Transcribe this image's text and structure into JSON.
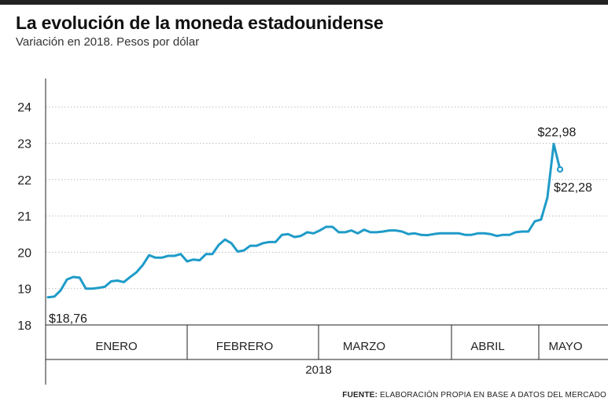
{
  "title": "La evolución de la moneda estadounidense",
  "subtitle": "Variación en 2018. Pesos por dólar",
  "source": {
    "label": "FUENTE:",
    "text": "ELABORACIÓN PROPIA EN BASE A DATOS DEL MERCADO"
  },
  "colors": {
    "line": "#1e9bc8",
    "axis": "#222222"
  },
  "chart_data": {
    "type": "line",
    "title": "La evolución de la moneda estadounidense",
    "subtitle": "Variación en 2018. Pesos por dólar",
    "xlabel": "2018",
    "ylabel": "",
    "ylim": [
      18,
      24
    ],
    "yticks": [
      18,
      19,
      20,
      21,
      22,
      23,
      24
    ],
    "month_labels": [
      "ENERO",
      "FEBRERO",
      "MARZO",
      "ABRIL",
      "MAYO"
    ],
    "year_label": "2018",
    "grid": true,
    "series": [
      {
        "values": [
          18.76,
          18.78,
          18.95,
          19.25,
          19.32,
          19.3,
          19.0,
          19.0,
          19.02,
          19.05,
          19.2,
          19.22,
          19.18,
          19.32,
          19.45,
          19.65,
          19.92,
          19.85,
          19.85,
          19.9,
          19.9,
          19.95,
          19.75,
          19.8,
          19.78,
          19.95,
          19.95,
          20.2,
          20.35,
          20.25,
          20.02,
          20.05,
          20.18,
          20.18,
          20.25,
          20.28,
          20.28,
          20.48,
          20.5,
          20.42,
          20.45,
          20.55,
          20.52,
          20.6,
          20.7,
          20.7,
          20.55,
          20.55,
          20.6,
          20.52,
          20.62,
          20.55,
          20.55,
          20.57,
          20.6,
          20.6,
          20.57,
          20.5,
          20.52,
          20.48,
          20.47,
          20.5,
          20.52,
          20.52,
          20.52,
          20.52,
          20.48,
          20.48,
          20.52,
          20.52,
          20.5,
          20.45,
          20.48,
          20.48,
          20.55,
          20.57,
          20.57,
          20.85,
          20.9,
          21.5,
          22.98,
          22.28
        ]
      }
    ],
    "annotations": [
      {
        "text": "$18,76",
        "value": 18.76,
        "point": "first"
      },
      {
        "text": "$22,98",
        "value": 22.98,
        "point": "max"
      },
      {
        "text": "$22,28",
        "value": 22.28,
        "point": "last"
      }
    ]
  }
}
